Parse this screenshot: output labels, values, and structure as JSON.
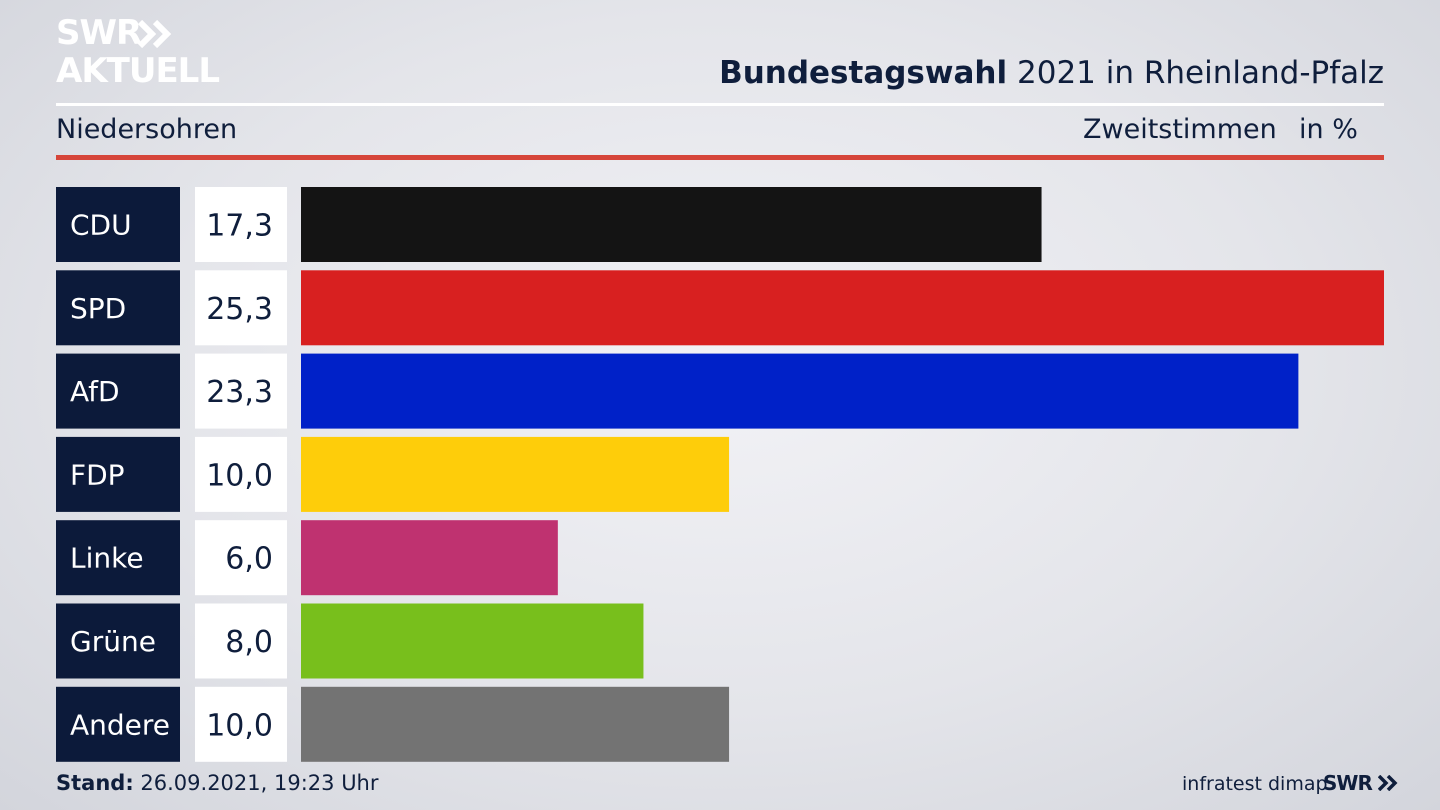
{
  "brand": {
    "line1": "SWR",
    "line2": "AKTUELL",
    "footer_logo": "SWR"
  },
  "header": {
    "title_bold": "Bundestagswahl",
    "title_rest": "2021 in Rheinland-Pfalz",
    "region": "Niedersohren",
    "metric": "Zweitstimmen",
    "unit": "in %"
  },
  "footer": {
    "stand_label": "Stand:",
    "stand_value": "26.09.2021, 19:23 Uhr",
    "source": "infratest dimap"
  },
  "colors": {
    "navy": "#0c1a3a",
    "accent_red": "#d6453a"
  },
  "chart_data": {
    "type": "bar",
    "orientation": "horizontal",
    "categories": [
      "CDU",
      "SPD",
      "AfD",
      "FDP",
      "Linke",
      "Grüne",
      "Andere"
    ],
    "value_labels": [
      "17,3",
      "25,3",
      "23,3",
      "10,0",
      "6,0",
      "8,0",
      "10,0"
    ],
    "values": [
      17.3,
      25.3,
      23.3,
      10.0,
      6.0,
      8.0,
      10.0
    ],
    "colors": [
      "#141414",
      "#d82020",
      "#0021c8",
      "#fecd0a",
      "#bf3270",
      "#78bf1c",
      "#737373"
    ],
    "xlim": [
      0,
      25.3
    ]
  }
}
